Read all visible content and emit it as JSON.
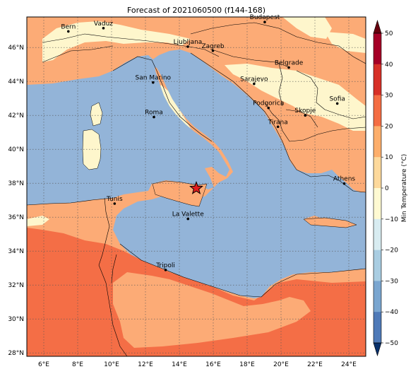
{
  "title": "Forecast of 2021060500 (f144-168)",
  "map": {
    "lon_range": [
      5.0,
      25.0
    ],
    "lat_range": [
      27.8,
      47.8
    ],
    "lon_ticks": [
      "6°E",
      "8°E",
      "10°E",
      "12°E",
      "14°E",
      "16°E",
      "18°E",
      "20°E",
      "22°E",
      "24°E"
    ],
    "lat_ticks": [
      "28°N",
      "30°N",
      "32°N",
      "34°N",
      "36°N",
      "38°N",
      "40°N",
      "42°N",
      "44°N",
      "46°N"
    ],
    "gridlines": true,
    "marker": {
      "type": "red-star",
      "lon": 15.0,
      "lat": 37.7
    },
    "cities": [
      {
        "name": "Bern",
        "lon": 7.45,
        "lat": 46.95
      },
      {
        "name": "Vaduz",
        "lon": 9.52,
        "lat": 47.14
      },
      {
        "name": "Budapest",
        "lon": 19.04,
        "lat": 47.5
      },
      {
        "name": "Ljubljana",
        "lon": 14.5,
        "lat": 46.05
      },
      {
        "name": "Zagreb",
        "lon": 15.98,
        "lat": 45.81
      },
      {
        "name": "Belgrade",
        "lon": 20.46,
        "lat": 44.82
      },
      {
        "name": "San Marino",
        "lon": 12.45,
        "lat": 43.94
      },
      {
        "name": "Sarajevo",
        "lon": 18.41,
        "lat": 43.86
      },
      {
        "name": "Sofia",
        "lon": 23.32,
        "lat": 42.7
      },
      {
        "name": "Podgorica",
        "lon": 19.26,
        "lat": 42.44
      },
      {
        "name": "Skopje",
        "lon": 21.43,
        "lat": 42.0
      },
      {
        "name": "Roma",
        "lon": 12.5,
        "lat": 41.9
      },
      {
        "name": "Tirana",
        "lon": 19.82,
        "lat": 41.33
      },
      {
        "name": "Athens",
        "lon": 23.73,
        "lat": 37.98
      },
      {
        "name": "Tunis",
        "lon": 10.18,
        "lat": 36.8
      },
      {
        "name": "La Valette",
        "lon": 14.51,
        "lat": 35.9
      },
      {
        "name": "Tripoli",
        "lon": 13.19,
        "lat": 32.89
      }
    ]
  },
  "colorbar": {
    "label": "Min Temperature (°C)",
    "ticks": [
      "50",
      "40",
      "30",
      "20",
      "10",
      "0",
      "−10",
      "−20",
      "−30",
      "−40",
      "−50"
    ],
    "colors": [
      "#08306b",
      "#2a4fa0",
      "#4f7ab8",
      "#7aa6d0",
      "#a9cde2",
      "#d8ecf1",
      "#fffad2",
      "#fdd99c",
      "#fdae6b",
      "#f46d43",
      "#d73027",
      "#a50026",
      "#67000d"
    ],
    "extend": "both"
  },
  "palette": {
    "sea": "#93b4d8",
    "band_0_10": "#fef6cc",
    "band_10_20": "#fcab76",
    "band_20_30": "#f46e46"
  }
}
